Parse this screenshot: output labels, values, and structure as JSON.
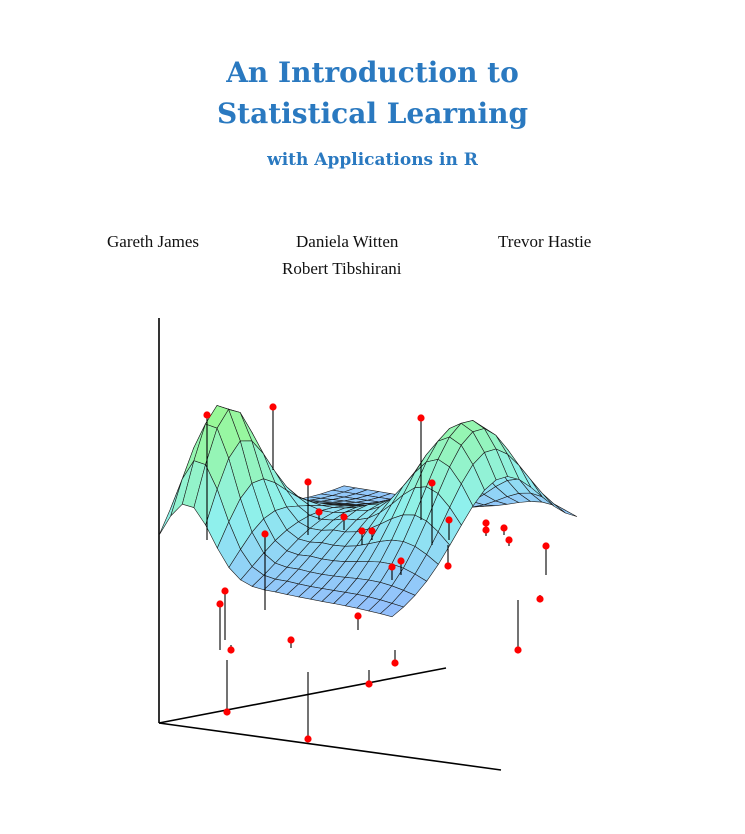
{
  "cover": {
    "title_line1": "An Introduction to",
    "title_line2": "Statistical Learning",
    "subtitle": "with Applications in R",
    "authors": [
      "Gareth James",
      "Daniela Witten",
      "Trevor Hastie",
      "Robert Tibshirani"
    ],
    "title_color": "#2a79c0"
  },
  "figure": {
    "surface_colors": {
      "low": "#94b4ff",
      "mid": "#8ff0ee",
      "high": "#98f898"
    },
    "point_color": "#ff0000"
  }
}
